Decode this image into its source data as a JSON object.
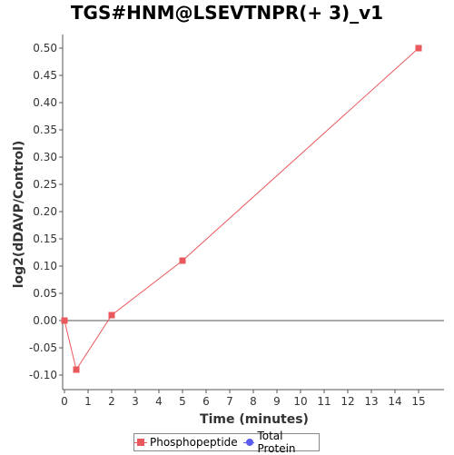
{
  "chart_data": {
    "type": "line",
    "title": "TGS#HNM@LSEVTNPR(+ 3)_v1",
    "xlabel": "Time (minutes)",
    "ylabel": "log2(dDAVP/Control)",
    "xlim": [
      0,
      16
    ],
    "ylim": [
      -0.12,
      0.52
    ],
    "x_ticks": [
      "0",
      "1",
      "2",
      "3",
      "4",
      "5",
      "6",
      "7",
      "8",
      "9",
      "10",
      "11",
      "12",
      "13",
      "14",
      "15"
    ],
    "y_ticks": [
      "-0.10",
      "-0.05",
      "0.00",
      "0.05",
      "0.10",
      "0.15",
      "0.20",
      "0.25",
      "0.30",
      "0.35",
      "0.40",
      "0.45",
      "0.50"
    ],
    "grid": false,
    "legend_position": "bottom",
    "series": [
      {
        "name": "Phosphopeptide",
        "color": "#e8585c",
        "marker": "square",
        "x": [
          0,
          0.5,
          2,
          5,
          15
        ],
        "y": [
          0.0,
          -0.09,
          0.01,
          0.11,
          0.5
        ]
      },
      {
        "name": "Total Protein",
        "color": "#5b5bf0",
        "marker": "circle",
        "x": [],
        "y": []
      }
    ]
  }
}
